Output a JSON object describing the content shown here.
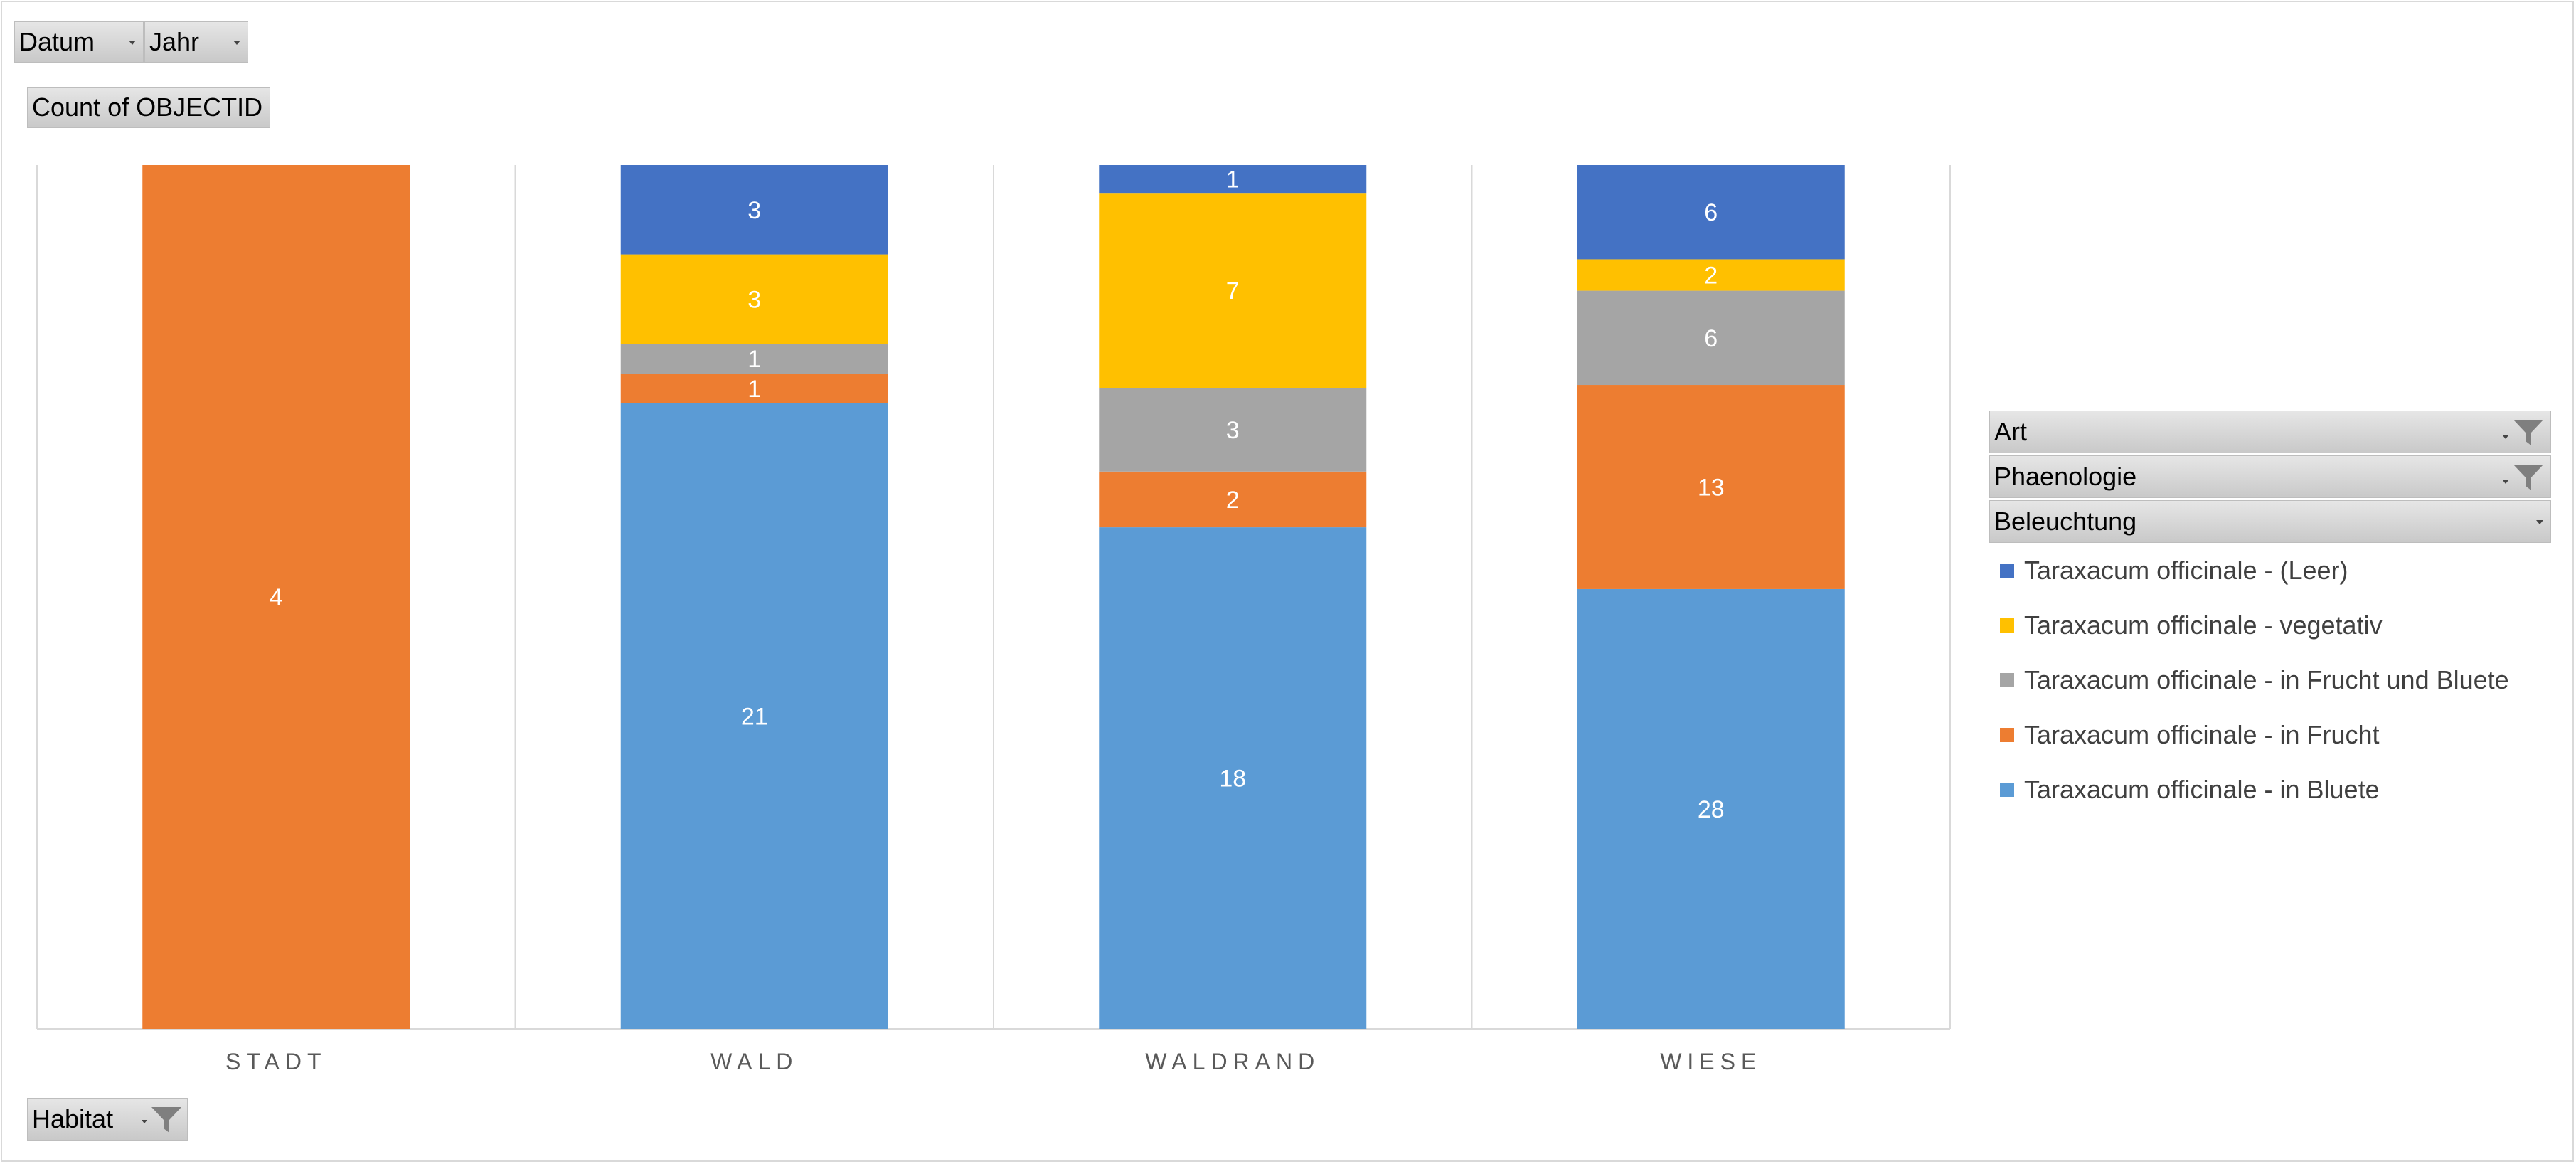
{
  "pivot_buttons": {
    "datum": "Datum",
    "jahr": "Jahr",
    "value_field": "Count of OBJECTID",
    "habitat": "Habitat",
    "art": "Art",
    "phaenologie": "Phaenologie",
    "beleuchtung": "Beleuchtung"
  },
  "icons": {
    "filter": "funnel-icon",
    "dropdown": "chevron-down-icon"
  },
  "colors": {
    "leer": "#4472c4",
    "vegetativ": "#ffc000",
    "frucht_bluete": "#a5a5a5",
    "frucht": "#ed7d31",
    "bluete": "#5b9bd5",
    "gridline": "#d9d9d9",
    "axis_text": "#595959"
  },
  "chart_data": {
    "type": "bar",
    "stacked": true,
    "categories": [
      "STADT",
      "WALD",
      "WALDRAND",
      "WIESE"
    ],
    "series": [
      {
        "name": "Taraxacum officinale - in Bluete",
        "color": "#5b9bd5",
        "values": [
          0,
          21,
          18,
          28
        ]
      },
      {
        "name": "Taraxacum officinale - in Frucht",
        "color": "#ed7d31",
        "values": [
          4,
          1,
          2,
          13
        ]
      },
      {
        "name": "Taraxacum officinale - in Frucht und Bluete",
        "color": "#a5a5a5",
        "values": [
          0,
          1,
          3,
          6
        ]
      },
      {
        "name": "Taraxacum officinale - vegetativ",
        "color": "#ffc000",
        "values": [
          0,
          3,
          7,
          2
        ]
      },
      {
        "name": "Taraxacum officinale - (Leer)",
        "color": "#4472c4",
        "values": [
          0,
          3,
          1,
          6
        ]
      }
    ],
    "normalized_to_100_percent": true,
    "data_labels": true,
    "legend_position": "right",
    "legend_order": [
      "Taraxacum officinale - (Leer)",
      "Taraxacum officinale - vegetativ",
      "Taraxacum officinale - in Frucht und Bluete",
      "Taraxacum officinale - in Frucht",
      "Taraxacum officinale - in Bluete"
    ],
    "grid": "vertical category separators",
    "y_axis_visible": false
  }
}
